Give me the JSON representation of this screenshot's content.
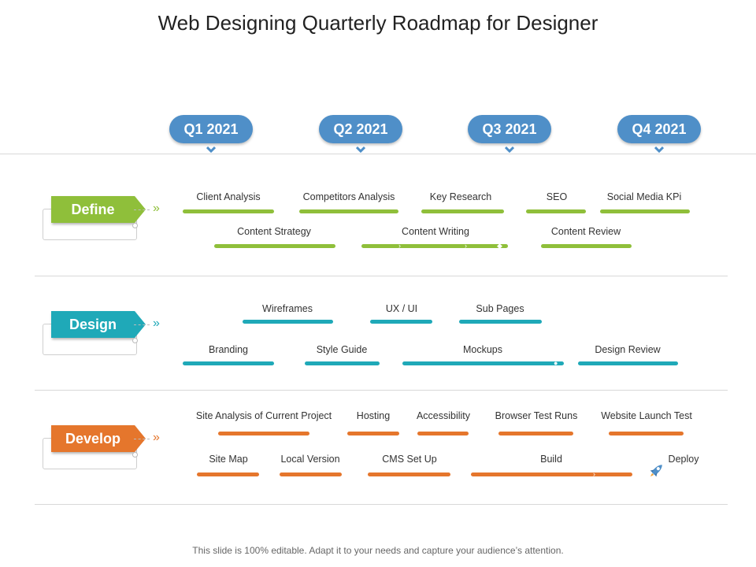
{
  "title": "Web Designing Quarterly Roadmap for Designer",
  "footer": "This slide is 100% editable. Adapt it to your needs and capture your audience’s attention.",
  "colors": {
    "define": "#8fbf3a",
    "design": "#1fa9b8",
    "develop": "#e5762c",
    "quarter": "#4f8fc8"
  },
  "quarters": [
    "Q1 2021",
    "Q2 2021",
    "Q3 2021",
    "Q4 2021"
  ],
  "categories": [
    {
      "label": "Define",
      "tasks": [
        {
          "label": "Client Analysis"
        },
        {
          "label": "Competitors Analysis"
        },
        {
          "label": "Key Research"
        },
        {
          "label": "SEO"
        },
        {
          "label": "Social Media KPi"
        },
        {
          "label": "Content Strategy"
        },
        {
          "label": "Content Writing"
        },
        {
          "label": "Content Review"
        }
      ]
    },
    {
      "label": "Design",
      "tasks": [
        {
          "label": "Wireframes"
        },
        {
          "label": "UX / UI"
        },
        {
          "label": "Sub Pages"
        },
        {
          "label": "Branding"
        },
        {
          "label": "Style Guide"
        },
        {
          "label": "Mockups"
        },
        {
          "label": "Design Review"
        }
      ]
    },
    {
      "label": "Develop",
      "tasks": [
        {
          "label": "Site Analysis of Current Project"
        },
        {
          "label": "Hosting"
        },
        {
          "label": "Accessibility"
        },
        {
          "label": "Browser Test Runs"
        },
        {
          "label": "Website Launch Test"
        },
        {
          "label": "Site Map"
        },
        {
          "label": "Local Version"
        },
        {
          "label": "CMS Set Up"
        },
        {
          "label": "Build"
        },
        {
          "label": "Deploy"
        }
      ]
    }
  ]
}
